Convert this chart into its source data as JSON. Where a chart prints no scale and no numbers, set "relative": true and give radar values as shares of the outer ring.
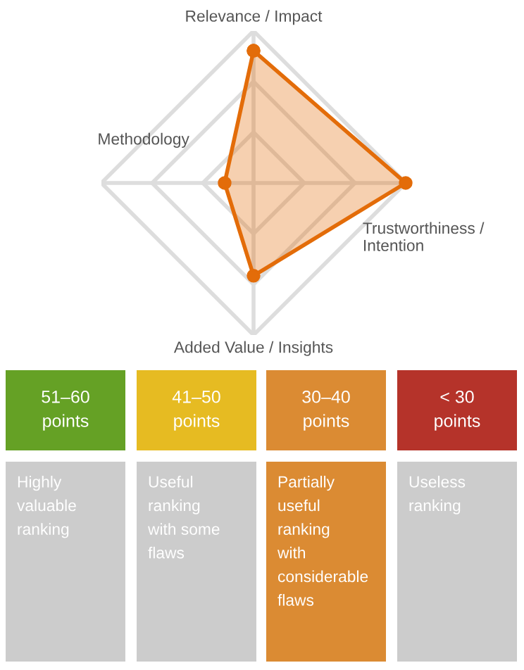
{
  "chart_data": [
    {
      "type": "radar",
      "categories": [
        "Relevance / Impact",
        "Trustworthiness /\nIntention",
        "Added Value / Insights",
        "Methodology"
      ],
      "relative": true,
      "grid": true,
      "marker": "circle",
      "series": [
        {
          "color": "#e36c09",
          "values": [
            0.87,
            1.0,
            0.61,
            0.19
          ]
        }
      ]
    },
    {
      "type": "other",
      "categories": [
        "51–60\npoints",
        "41–50\npoints",
        "30–40\npoints",
        "< 30\npoints",
        "Highly\nvaluable\nranking",
        "Useful\nranking\nwith some\nflaws",
        "Partially\nuseful\nranking\nwith\nconsiderable\nflaws",
        "Useless\nranking"
      ],
      "colors": [
        "#65a125",
        "#e6bb22",
        "#db8b33",
        "#b5332a",
        "#cccccc",
        "#cccccc",
        "#db8b33",
        "#cccccc"
      ]
    }
  ]
}
